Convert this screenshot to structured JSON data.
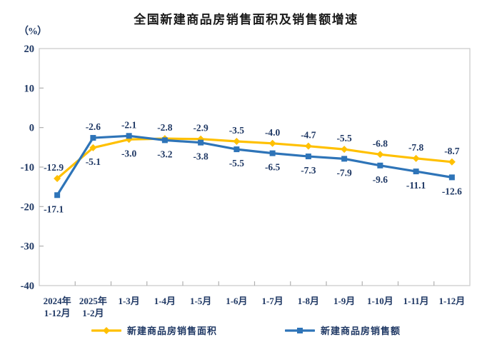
{
  "title": "全国新建商品房销售面积及销售额增速",
  "y_axis_unit": "（%）",
  "colors": {
    "sales_area_series": "#FFC000",
    "sales_amount_series": "#2E74B8",
    "frame": "#c9c9c9",
    "tick": "#b0b0b0",
    "label_text": "#1F3864",
    "title_text": "#1a1a1a",
    "background": "#ffffff"
  },
  "chart_data": {
    "type": "line",
    "title": "全国新建商品房销售面积及销售额增速",
    "ylabel": "（%）",
    "xlabel": "",
    "ylim": [
      -40,
      20
    ],
    "y_ticks": [
      20,
      10,
      0,
      -10,
      -20,
      -30,
      -40
    ],
    "grid": false,
    "legend_position": "bottom",
    "categories": [
      "2024年\n1-12月",
      "2025年\n1-2月",
      "1-3月",
      "1-4月",
      "1-5月",
      "1-6月",
      "1-7月",
      "1-8月",
      "1-9月",
      "1-10月",
      "1-11月",
      "1-12月"
    ],
    "series": [
      {
        "name": "新建商品房销售面积",
        "color": "#FFC000",
        "marker": "diamond",
        "values": [
          -12.9,
          -5.1,
          -3.0,
          -2.8,
          -2.9,
          -3.5,
          -4.0,
          -4.7,
          -5.5,
          -6.8,
          -7.8,
          -8.7
        ]
      },
      {
        "name": "新建商品房销售额",
        "color": "#2E74B8",
        "marker": "square",
        "values": [
          -17.1,
          -2.6,
          -2.1,
          -3.2,
          -3.8,
          -5.5,
          -6.5,
          -7.3,
          -7.9,
          -9.6,
          -11.1,
          -12.6
        ]
      }
    ]
  }
}
